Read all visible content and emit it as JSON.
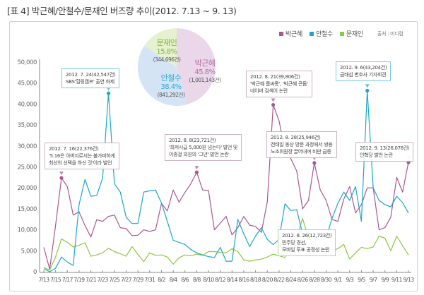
{
  "title": "[표 4] 박근혜/안철수/문재인 버즈량 추이(2012. 7.13 ~ 9. 13)",
  "legend": {
    "items": [
      {
        "label": "박근혜",
        "color": "#a8578f"
      },
      {
        "label": "안철수",
        "color": "#1aa7c9"
      },
      {
        "label": "문재인",
        "color": "#8dc63f"
      }
    ],
    "source": "출처 : 미디컴"
  },
  "pie": {
    "slices": [
      {
        "name": "박근혜",
        "percent": 45.8,
        "count": "(1,001,143건)",
        "pct_label": "45.8%",
        "fill": "#ead7ea",
        "text_color": "#b56fa6"
      },
      {
        "name": "안철수",
        "percent": 38.4,
        "count": "(841,292건)",
        "pct_label": "38.4%",
        "fill": "#d4e4f4",
        "text_color": "#2fa8d8"
      },
      {
        "name": "문재인",
        "percent": 15.8,
        "count": "(344,696건)",
        "pct_label": "15.8%",
        "fill": "#e6f2cf",
        "text_color": "#7fb339"
      }
    ]
  },
  "annotations": [
    {
      "id": "a1",
      "series": 1,
      "day_index": 11,
      "lines": [
        "2012. 7. 24(42,547건)",
        "SBS'힐링캠프' 출연 화제"
      ]
    },
    {
      "id": "a2",
      "series": 0,
      "day_index": 3,
      "lines": [
        "2012. 7. 16(22,376건)",
        "'5.16은 아버지로서는 불가피하게",
        "최선의 선택을 하신 것'이라 발언"
      ]
    },
    {
      "id": "a3",
      "series": 0,
      "day_index": 26,
      "lines": [
        "2012. 8. 8(23,721건)",
        "'최저시급 5,000원 넘는다' 발언 및",
        "이종걸 의원의 '그년' 발언 논란"
      ]
    },
    {
      "id": "a4",
      "series": 0,
      "day_index": 39,
      "lines": [
        "2012. 8. 21(39,806건)",
        "'박근혜 룸싸롱', '박근혜 콘돔'",
        "네이버 검색어 논란"
      ]
    },
    {
      "id": "a5",
      "series": 0,
      "day_index": 46,
      "lines": [
        "2012. 8. 28(25,946건)",
        "전태일 동상 방문 과정에서 쌍용",
        "노조위원장 끌어내며 비판 급증"
      ]
    },
    {
      "id": "a6",
      "series": 2,
      "day_index": 45,
      "lines": [
        "2012. 8. 26(12,723건)",
        "민주당 경선,",
        "모바일 투표 공정성 논란"
      ]
    },
    {
      "id": "a7",
      "series": 1,
      "day_index": 55,
      "lines": [
        "2012. 9. 6(43,204건)",
        "금태섭 변호사 기자회견"
      ]
    },
    {
      "id": "a8",
      "series": 0,
      "day_index": 62,
      "lines": [
        "2012. 9. 13(26,078건)",
        "인혁당 발언 논란"
      ]
    }
  ],
  "chart_data": {
    "type": "line",
    "title": "[표 4] 박근혜/안철수/문재인 버즈량 추이(2012. 7.13 ~ 9. 13)",
    "xlabel": "",
    "ylabel": "",
    "ylim": [
      0,
      50000
    ],
    "yticks": [
      0,
      5000,
      10000,
      15000,
      20000,
      25000,
      30000,
      35000,
      40000,
      45000,
      50000
    ],
    "ytick_labels": [
      "0",
      "5,000",
      "10,000",
      "15,000",
      "20,000",
      "25,000",
      "30,000",
      "35,000",
      "40,000",
      "45,000",
      "50,000"
    ],
    "xtick_labels": [
      "7/13",
      "7/15",
      "7/17",
      "7/19",
      "7/21",
      "7/23",
      "7/25",
      "7/27",
      "7/29",
      "7/31",
      "8/2",
      "8/4",
      "8/6",
      "8/8",
      "8/10",
      "8/12",
      "8/14",
      "8/16",
      "8/18",
      "8/20",
      "8/22",
      "8/24",
      "8/26",
      "8/28",
      "8/30",
      "9/1",
      "9/3",
      "9/5",
      "9/7",
      "9/9",
      "9/11",
      "9/13"
    ],
    "x": [
      "7/13",
      "7/14",
      "7/15",
      "7/16",
      "7/17",
      "7/18",
      "7/19",
      "7/20",
      "7/21",
      "7/22",
      "7/23",
      "7/24",
      "7/25",
      "7/26",
      "7/27",
      "7/28",
      "7/29",
      "7/30",
      "7/31",
      "8/1",
      "8/2",
      "8/3",
      "8/4",
      "8/5",
      "8/6",
      "8/7",
      "8/8",
      "8/9",
      "8/10",
      "8/11",
      "8/12",
      "8/13",
      "8/14",
      "8/15",
      "8/16",
      "8/17",
      "8/18",
      "8/19",
      "8/20",
      "8/21",
      "8/22",
      "8/23",
      "8/24",
      "8/25",
      "8/26",
      "8/27",
      "8/28",
      "8/29",
      "8/30",
      "8/31",
      "9/1",
      "9/2",
      "9/3",
      "9/4",
      "9/5",
      "9/6",
      "9/7",
      "9/8",
      "9/9",
      "9/10",
      "9/11",
      "9/12",
      "9/13"
    ],
    "grid": false,
    "legend": "top-right",
    "series": [
      {
        "name": "박근혜",
        "color": "#a8578f",
        "values": [
          5800,
          600,
          11000,
          22376,
          20300,
          13500,
          14300,
          11000,
          8300,
          12400,
          12000,
          13200,
          13500,
          10500,
          10300,
          8600,
          8700,
          10000,
          9600,
          10000,
          16300,
          14500,
          19500,
          16600,
          18900,
          21000,
          23721,
          19500,
          19400,
          10000,
          11600,
          13200,
          8800,
          10500,
          13200,
          11100,
          10800,
          9400,
          16700,
          39806,
          36000,
          29000,
          27000,
          24000,
          15000,
          17000,
          25946,
          19500,
          17000,
          12500,
          12000,
          17300,
          20300,
          14000,
          16000,
          20000,
          20000,
          10000,
          10500,
          13000,
          22500,
          19000,
          26078
        ]
      },
      {
        "name": "안철수",
        "color": "#1aa7c9",
        "values": [
          700,
          0,
          800,
          3500,
          2300,
          1500,
          16000,
          22000,
          18000,
          18200,
          22300,
          42547,
          21000,
          19000,
          13000,
          11500,
          11500,
          19000,
          19300,
          19500,
          16400,
          12000,
          7500,
          7000,
          6500,
          5300,
          4500,
          4000,
          3600,
          3400,
          5800,
          2500,
          2500,
          12500,
          9000,
          6000,
          8500,
          10500,
          7700,
          6500,
          7700,
          16200,
          14600,
          14800,
          9000,
          8000,
          7000,
          9000,
          8000,
          12700,
          16300,
          19000,
          17000,
          20300,
          12000,
          43204,
          20000,
          17000,
          16000,
          15500,
          18000,
          16500,
          14000
        ]
      },
      {
        "name": "문재인",
        "color": "#8dc63f",
        "values": [
          1000,
          400,
          3500,
          7800,
          7000,
          5900,
          6300,
          6900,
          3700,
          4000,
          4500,
          5600,
          4800,
          4300,
          3700,
          6000,
          4100,
          2400,
          4500,
          3900,
          4000,
          3500,
          1800,
          3300,
          4000,
          3800,
          4200,
          3900,
          4800,
          4800,
          4600,
          4500,
          5500,
          4800,
          2800,
          2500,
          2800,
          3000,
          3500,
          4200,
          3800,
          3400,
          6500,
          8000,
          12723,
          8000,
          5500,
          5200,
          6500,
          5000,
          5500,
          6500,
          3000,
          4500,
          5800,
          5500,
          5900,
          8500,
          8000,
          5000,
          8500,
          6200,
          4000
        ]
      }
    ]
  }
}
